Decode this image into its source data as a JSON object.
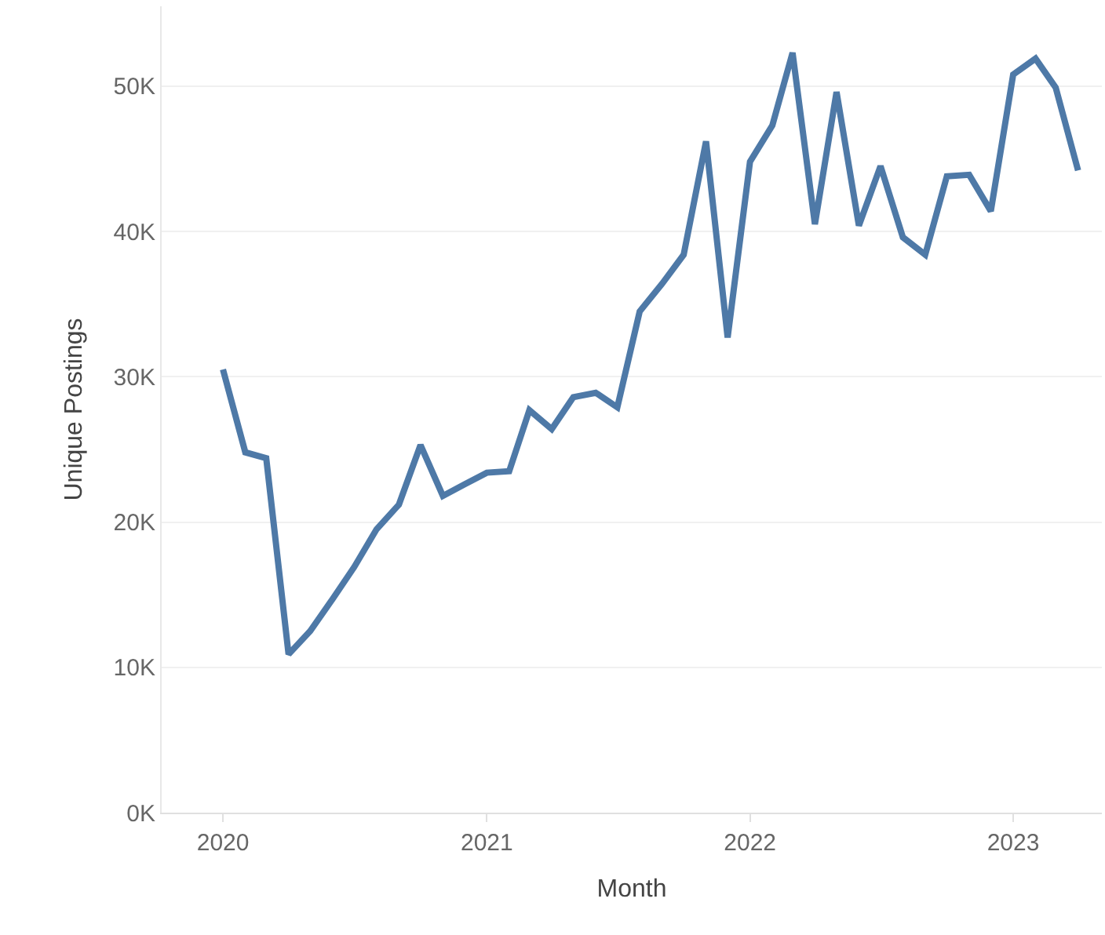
{
  "chart_data": {
    "type": "line",
    "xlabel": "Month",
    "ylabel": "Unique Postings",
    "x": [
      "2020-01",
      "2020-02",
      "2020-03",
      "2020-04",
      "2020-05",
      "2020-06",
      "2020-07",
      "2020-08",
      "2020-09",
      "2020-10",
      "2020-11",
      "2020-12",
      "2021-01",
      "2021-02",
      "2021-03",
      "2021-04",
      "2021-05",
      "2021-06",
      "2021-07",
      "2021-08",
      "2021-09",
      "2021-10",
      "2021-11",
      "2021-12",
      "2022-01",
      "2022-02",
      "2022-03",
      "2022-04",
      "2022-05",
      "2022-06",
      "2022-07",
      "2022-08",
      "2022-09",
      "2022-10",
      "2022-11",
      "2022-12",
      "2023-01",
      "2023-02",
      "2023-03",
      "2023-04"
    ],
    "series": [
      {
        "color": "#4e79a7",
        "values": [
          30500,
          24800,
          24400,
          10900,
          12500,
          14700,
          16900,
          19500,
          21200,
          25300,
          21800,
          22600,
          23400,
          23500,
          27700,
          26400,
          28600,
          28900,
          27900,
          34500,
          36400,
          38400,
          46200,
          32700,
          44800,
          47300,
          52300,
          40500,
          49600,
          40400,
          44500,
          39600,
          38400,
          43800,
          43900,
          41400,
          50800,
          51900,
          49900,
          44200
        ]
      }
    ],
    "xlim": [
      "2019-10-08",
      "2023-05-04"
    ],
    "xticks": [
      {
        "value": "2020-01-01",
        "label": "2020"
      },
      {
        "value": "2021-01-01",
        "label": "2021"
      },
      {
        "value": "2022-01-01",
        "label": "2022"
      },
      {
        "value": "2023-01-01",
        "label": "2023"
      }
    ],
    "ylim": [
      0,
      55500
    ],
    "yticks": [
      {
        "value": 0,
        "label": "0K"
      },
      {
        "value": 10000,
        "label": "10K"
      },
      {
        "value": 20000,
        "label": "20K"
      },
      {
        "value": 30000,
        "label": "30K"
      },
      {
        "value": 40000,
        "label": "40K"
      },
      {
        "value": 50000,
        "label": "50K"
      }
    ],
    "grid": "y",
    "legend": false,
    "marker": "none",
    "line_style": "solid"
  }
}
